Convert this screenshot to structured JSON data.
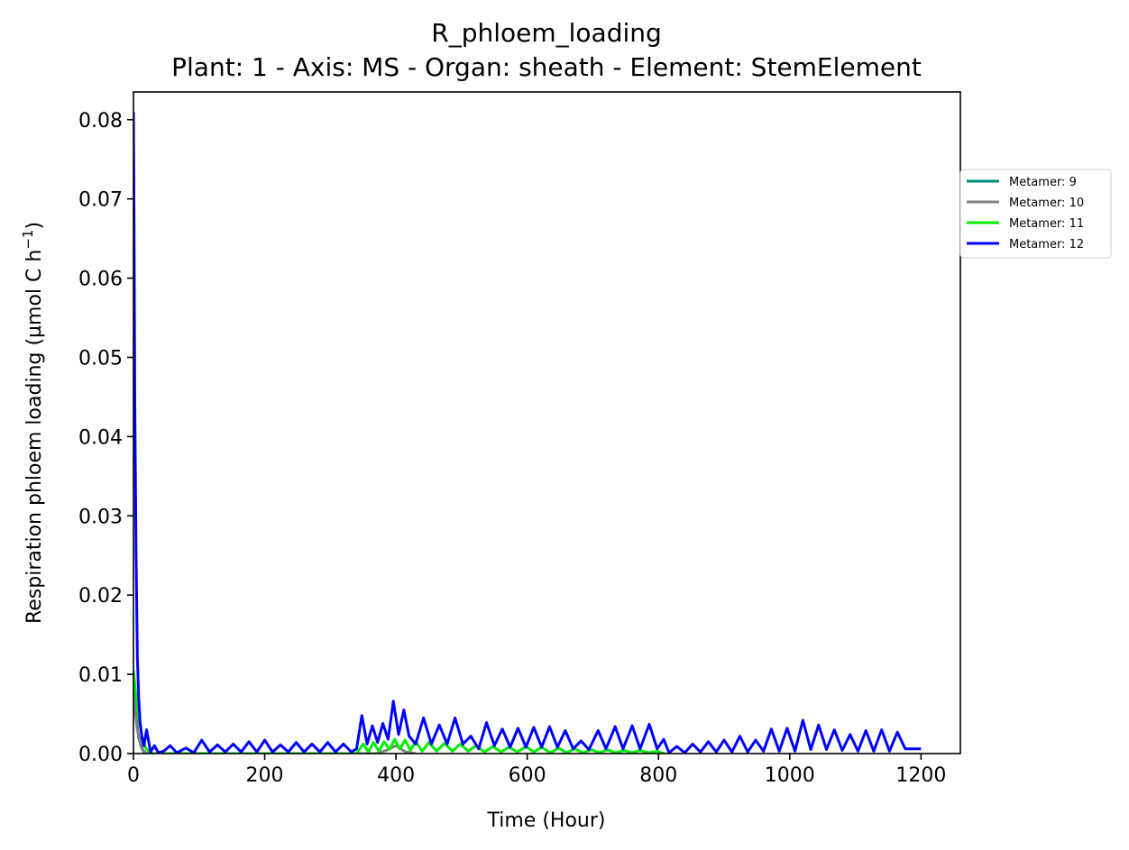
{
  "chart_data": {
    "type": "line",
    "title": "R_phloem_loading",
    "subtitle": "Plant: 1 - Axis: MS - Organ: sheath - Element: StemElement",
    "xlabel": "Time (Hour)",
    "ylabel_main": "Respiration phloem loading (µmol C h",
    "ylabel_sup": "−1",
    "ylabel_close": ")",
    "xlim": [
      0,
      1260
    ],
    "ylim": [
      0,
      0.0835
    ],
    "xticks": [
      0,
      200,
      400,
      600,
      800,
      1000,
      1200
    ],
    "xtick_labels": [
      "0",
      "200",
      "400",
      "600",
      "800",
      "1000",
      "1200"
    ],
    "yticks": [
      0,
      0.01,
      0.02,
      0.03,
      0.04,
      0.05,
      0.06,
      0.07,
      0.08
    ],
    "ytick_labels": [
      "0.00",
      "0.01",
      "0.02",
      "0.03",
      "0.04",
      "0.05",
      "0.06",
      "0.07",
      "0.08"
    ],
    "legend_position": "right-top, outside",
    "series": [
      {
        "name": "Metamer: 9",
        "color": "#008b80",
        "x": [
          0,
          2,
          5,
          8,
          12,
          16,
          20
        ],
        "y": [
          0.0085,
          0.006,
          0.004,
          0.002,
          0.0008,
          0.0002,
          0
        ]
      },
      {
        "name": "Metamer: 10",
        "color": "#808080",
        "x": [
          0,
          3,
          6,
          10,
          14,
          20,
          370,
          385,
          395,
          400,
          405,
          415,
          430
        ],
        "y": [
          0.007,
          0.005,
          0.003,
          0.0015,
          0.0005,
          0,
          0,
          0.0004,
          0.0008,
          0.001,
          0.0007,
          0.0002,
          0
        ]
      },
      {
        "name": "Metamer: 11",
        "color": "#00ee00",
        "x": [
          0,
          3,
          6,
          9,
          13,
          18,
          24,
          30,
          340,
          350,
          358,
          366,
          374,
          382,
          390,
          398,
          406,
          414,
          422,
          430,
          440,
          450,
          462,
          474,
          486,
          498,
          510,
          522,
          535,
          548,
          560,
          572,
          585,
          598,
          610,
          622,
          635,
          648,
          660,
          672,
          685,
          698,
          710,
          722,
          735,
          748,
          760,
          772,
          785,
          798,
          805,
          810
        ],
        "y": [
          0.0105,
          0.008,
          0.006,
          0.004,
          0.0022,
          0.0008,
          0.0002,
          0,
          0,
          0.0012,
          0.0002,
          0.0014,
          0.0003,
          0.0015,
          0.0005,
          0.0018,
          0.0006,
          0.0017,
          0.0004,
          0.0015,
          0.0003,
          0.0014,
          0.0003,
          0.0013,
          0.0003,
          0.0012,
          0.0003,
          0.001,
          0.0002,
          0.0009,
          0.0002,
          0.0008,
          0.0002,
          0.0009,
          0.0002,
          0.0008,
          0.0001,
          0.0007,
          0.0001,
          0.0006,
          0.0001,
          0.0005,
          0.0001,
          0.0005,
          0.0001,
          0.0004,
          0.0001,
          0.0004,
          0.0001,
          0.0003,
          0.0001,
          0
        ]
      },
      {
        "name": "Metamer: 12",
        "color": "#0000ff",
        "x": [
          0,
          1,
          2,
          4,
          6,
          8,
          10,
          13,
          16,
          20,
          26,
          32,
          38,
          46,
          56,
          66,
          80,
          92,
          104,
          116,
          128,
          140,
          152,
          164,
          176,
          188,
          200,
          212,
          224,
          236,
          248,
          260,
          272,
          284,
          296,
          308,
          320,
          332,
          340,
          348,
          356,
          364,
          372,
          380,
          388,
          396,
          404,
          412,
          420,
          430,
          442,
          454,
          466,
          478,
          490,
          502,
          514,
          526,
          538,
          550,
          562,
          574,
          586,
          598,
          610,
          622,
          634,
          646,
          658,
          670,
          682,
          694,
          708,
          720,
          734,
          746,
          760,
          772,
          786,
          798,
          808,
          816,
          828,
          840,
          852,
          864,
          876,
          888,
          900,
          912,
          924,
          936,
          948,
          960,
          972,
          984,
          996,
          1008,
          1020,
          1032,
          1044,
          1056,
          1068,
          1080,
          1092,
          1104,
          1116,
          1128,
          1140,
          1152,
          1164,
          1176,
          1200
        ],
        "y": [
          0.081,
          0.065,
          0.045,
          0.025,
          0.012,
          0.007,
          0.004,
          0.002,
          0.001,
          0.003,
          0.0002,
          0.001,
          0.0001,
          0.0003,
          0.001,
          0.0001,
          0.0007,
          0.0001,
          0.0017,
          0.0002,
          0.0011,
          0.0002,
          0.0012,
          0.0002,
          0.0015,
          0.0002,
          0.0017,
          0.0002,
          0.0011,
          0.0002,
          0.0014,
          0.0002,
          0.0012,
          0.0002,
          0.0014,
          0.0002,
          0.0012,
          0.0002,
          0.0006,
          0.0048,
          0.0012,
          0.0035,
          0.0014,
          0.0038,
          0.0018,
          0.0066,
          0.0024,
          0.0055,
          0.0022,
          0.0012,
          0.0045,
          0.0012,
          0.0036,
          0.0012,
          0.0045,
          0.0012,
          0.0022,
          0.0006,
          0.0039,
          0.001,
          0.0031,
          0.0008,
          0.0032,
          0.0008,
          0.0033,
          0.0008,
          0.0034,
          0.0008,
          0.0029,
          0.0006,
          0.0016,
          0.0005,
          0.0029,
          0.0006,
          0.0034,
          0.0006,
          0.0035,
          0.0006,
          0.0037,
          0.0006,
          0.0018,
          0.0001,
          0.0009,
          0.0001,
          0.0012,
          0.0002,
          0.0015,
          0.0002,
          0.0017,
          0.0002,
          0.0022,
          0.0002,
          0.0017,
          0.0003,
          0.0031,
          0.0003,
          0.0032,
          0.0003,
          0.0042,
          0.0005,
          0.0036,
          0.0005,
          0.003,
          0.0004,
          0.0024,
          0.0003,
          0.0029,
          0.0003,
          0.003,
          0.0003,
          0.0027,
          0.0006,
          0.0006
        ]
      }
    ]
  }
}
